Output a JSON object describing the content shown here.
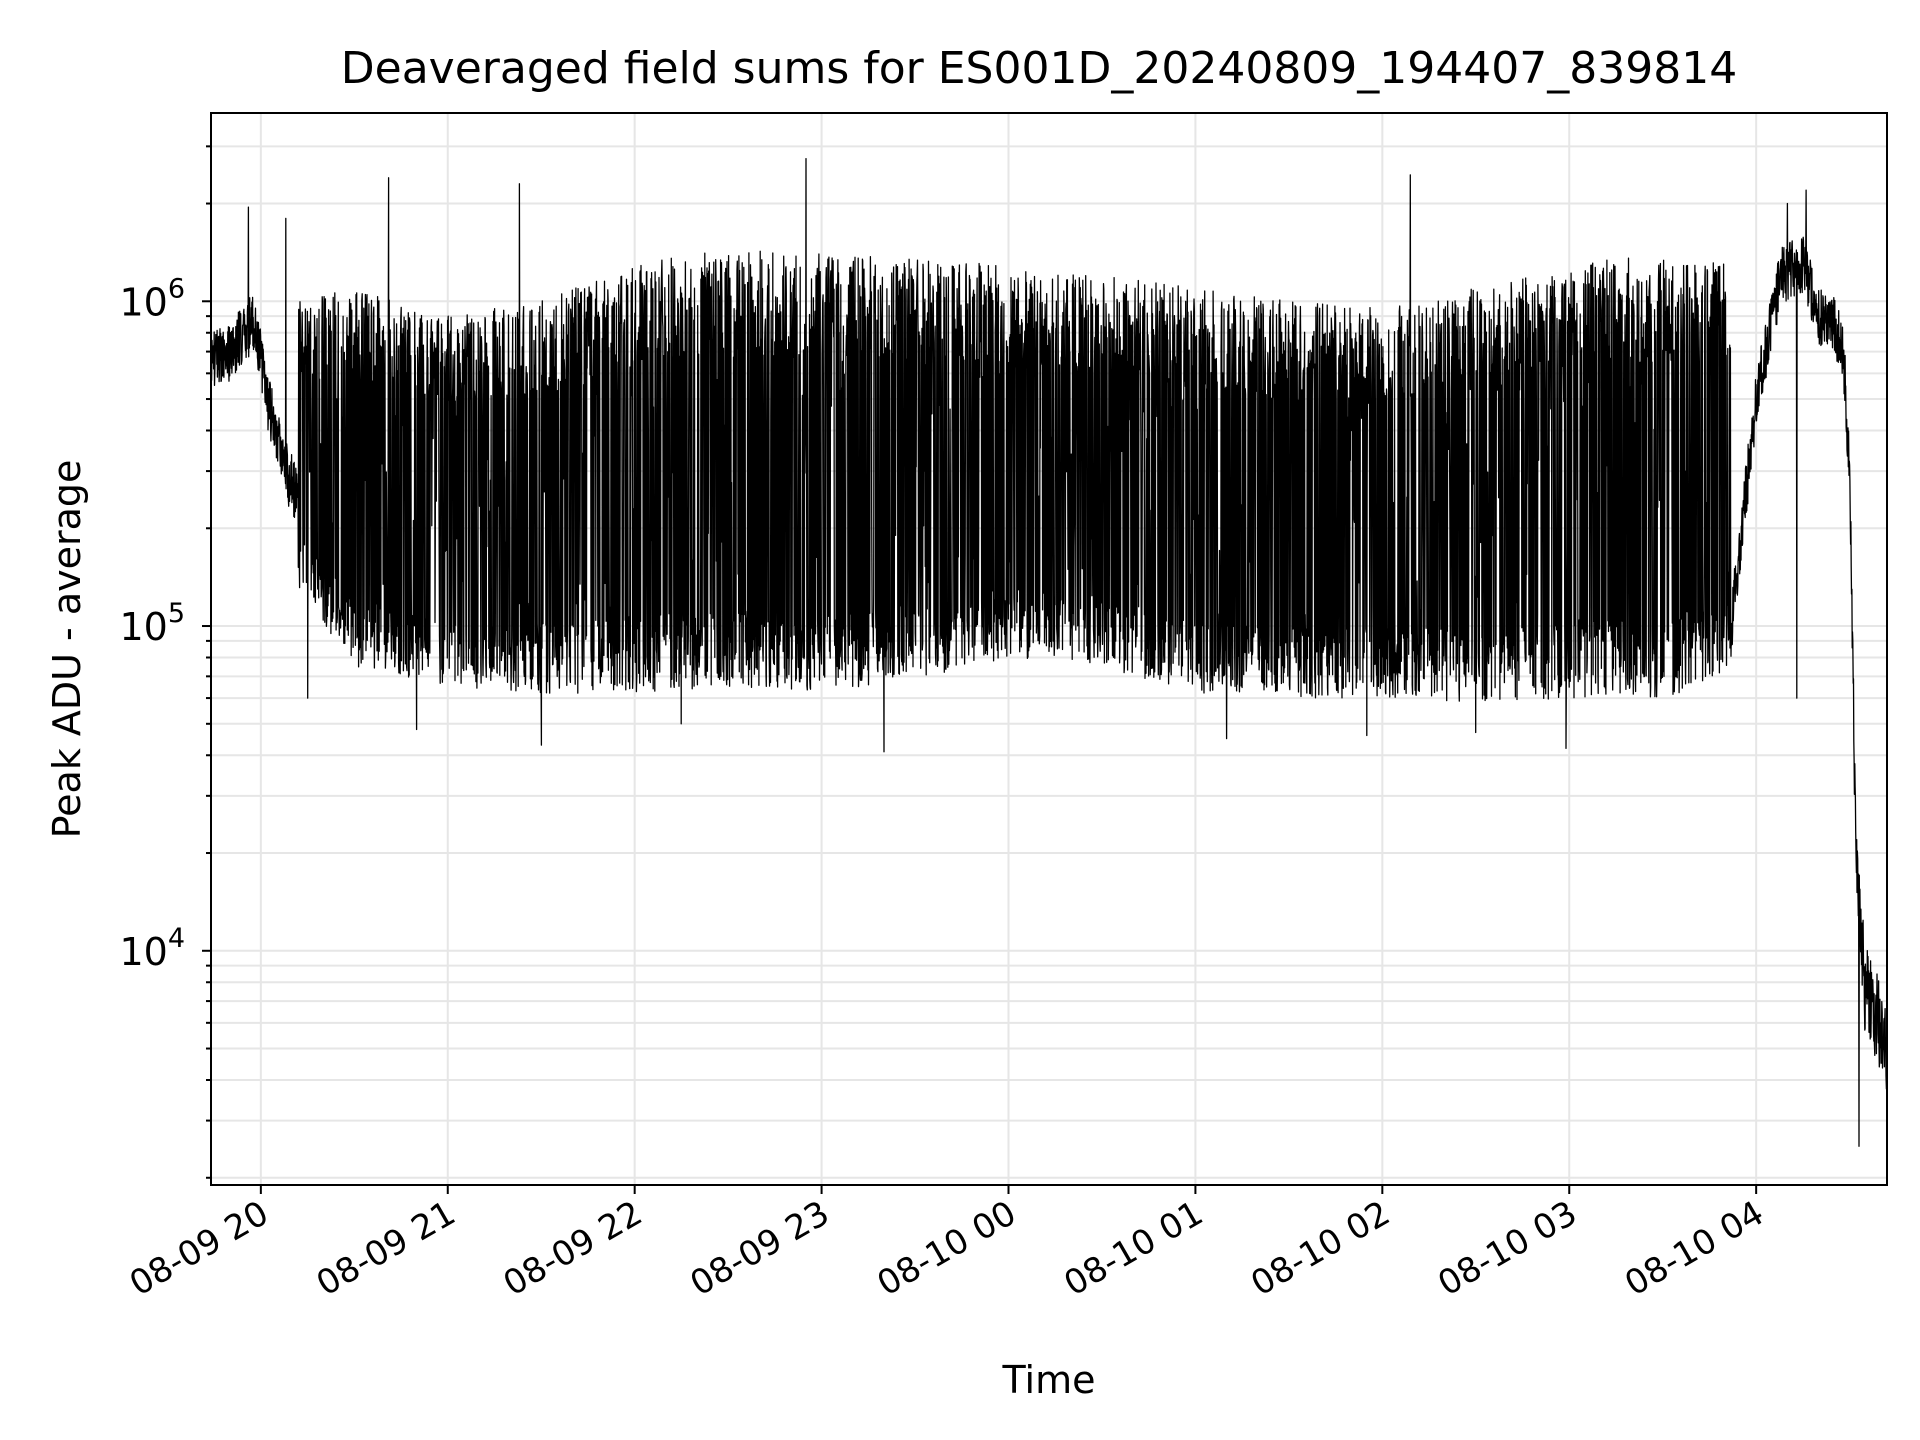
{
  "chart_data": {
    "type": "line",
    "title": "Deaveraged field sums for ES001D_20240809_194407_839814",
    "xlabel": "Time",
    "ylabel": "Peak ADU - average",
    "yscale": "log",
    "grid": true,
    "legend": "none",
    "line_color": "#000000",
    "grid_color": "#e6e6e6",
    "xlim": [
      "2024-08-09 19:44",
      "2024-08-10 04:42"
    ],
    "ylim": [
      1900,
      3800000
    ],
    "x_ticks": [
      {
        "value": "2024-08-09 20:00",
        "label": "08-09 20"
      },
      {
        "value": "2024-08-09 21:00",
        "label": "08-09 21"
      },
      {
        "value": "2024-08-09 22:00",
        "label": "08-09 22"
      },
      {
        "value": "2024-08-09 23:00",
        "label": "08-09 23"
      },
      {
        "value": "2024-08-10 00:00",
        "label": "08-10 00"
      },
      {
        "value": "2024-08-10 01:00",
        "label": "08-10 01"
      },
      {
        "value": "2024-08-10 02:00",
        "label": "08-10 02"
      },
      {
        "value": "2024-08-10 03:00",
        "label": "08-10 03"
      },
      {
        "value": "2024-08-10 04:00",
        "label": "08-10 04"
      }
    ],
    "y_ticks": [
      {
        "value": 10000,
        "base": "10",
        "exp": "4"
      },
      {
        "value": 100000,
        "base": "10",
        "exp": "5"
      },
      {
        "value": 1000000,
        "base": "10",
        "exp": "6"
      }
    ],
    "series": [
      {
        "x": [
          "2024-08-09 19:44",
          "2024-08-09 19:50",
          "2024-08-09 19:55",
          "2024-08-09 19:58",
          "2024-08-09 20:02",
          "2024-08-09 20:08",
          "2024-08-09 20:12",
          "2024-08-09 20:20",
          "2024-08-09 20:30",
          "2024-08-09 20:40",
          "2024-08-09 20:50",
          "2024-08-09 21:00",
          "2024-08-09 21:15",
          "2024-08-09 21:30",
          "2024-08-09 22:00",
          "2024-08-09 22:30",
          "2024-08-09 23:00",
          "2024-08-09 23:30",
          "2024-08-10 00:00",
          "2024-08-10 00:30",
          "2024-08-10 01:00",
          "2024-08-10 01:30",
          "2024-08-10 02:00",
          "2024-08-10 02:30",
          "2024-08-10 03:00",
          "2024-08-10 03:30",
          "2024-08-10 03:52",
          "2024-08-10 04:00",
          "2024-08-10 04:08",
          "2024-08-10 04:15",
          "2024-08-10 04:20",
          "2024-08-10 04:25",
          "2024-08-10 04:28",
          "2024-08-10 04:30",
          "2024-08-10 04:32",
          "2024-08-10 04:35",
          "2024-08-10 04:38",
          "2024-08-10 04:42"
        ],
        "y": [
          650000,
          700000,
          800000,
          880000,
          500000,
          300000,
          250000,
          200000,
          150000,
          120000,
          110000,
          100000,
          100000,
          95000,
          90000,
          100000,
          250000,
          300000,
          350000,
          200000,
          120000,
          90000,
          85000,
          90000,
          90000,
          90000,
          100000,
          500000,
          1200000,
          1300000,
          900000,
          850000,
          700000,
          300000,
          20000,
          7500,
          6500,
          5000
        ]
      }
    ],
    "envelope": {
      "x": [
        "2024-08-09 20:12",
        "2024-08-09 20:30",
        "2024-08-09 21:00",
        "2024-08-09 21:30",
        "2024-08-09 22:00",
        "2024-08-09 22:30",
        "2024-08-09 23:00",
        "2024-08-09 23:30",
        "2024-08-10 00:00",
        "2024-08-10 00:30",
        "2024-08-10 01:00",
        "2024-08-10 01:30",
        "2024-08-10 02:00",
        "2024-08-10 02:30",
        "2024-08-10 03:00",
        "2024-08-10 03:30",
        "2024-08-10 03:52"
      ],
      "upper": [
        1000000,
        1100000,
        900000,
        1000000,
        1300000,
        1450000,
        1400000,
        1350000,
        1300000,
        1200000,
        1100000,
        1000000,
        950000,
        1100000,
        1300000,
        1400000,
        1300000
      ],
      "lower": [
        130000,
        75000,
        65000,
        62000,
        62000,
        65000,
        63000,
        68000,
        80000,
        75000,
        62000,
        60000,
        60000,
        58000,
        60000,
        60000,
        70000
      ]
    },
    "spikes": [
      {
        "x": "2024-08-09 19:56",
        "y": 1950000
      },
      {
        "x": "2024-08-09 20:08",
        "y": 1800000
      },
      {
        "x": "2024-08-09 20:41",
        "y": 2400000
      },
      {
        "x": "2024-08-09 21:23",
        "y": 2300000
      },
      {
        "x": "2024-08-09 22:55",
        "y": 2750000
      },
      {
        "x": "2024-08-10 02:09",
        "y": 2450000
      },
      {
        "x": "2024-08-10 04:10",
        "y": 2000000
      },
      {
        "x": "2024-08-10 04:16",
        "y": 2200000
      }
    ],
    "dips": [
      {
        "x": "2024-08-09 20:15",
        "y": 60000
      },
      {
        "x": "2024-08-09 20:50",
        "y": 48000
      },
      {
        "x": "2024-08-09 21:30",
        "y": 43000
      },
      {
        "x": "2024-08-09 22:15",
        "y": 50000
      },
      {
        "x": "2024-08-09 23:20",
        "y": 41000
      },
      {
        "x": "2024-08-10 01:10",
        "y": 45000
      },
      {
        "x": "2024-08-10 01:55",
        "y": 46000
      },
      {
        "x": "2024-08-10 02:30",
        "y": 47000
      },
      {
        "x": "2024-08-10 02:59",
        "y": 42000
      },
      {
        "x": "2024-08-10 04:13",
        "y": 60000
      },
      {
        "x": "2024-08-10 04:33",
        "y": 2500
      }
    ]
  }
}
